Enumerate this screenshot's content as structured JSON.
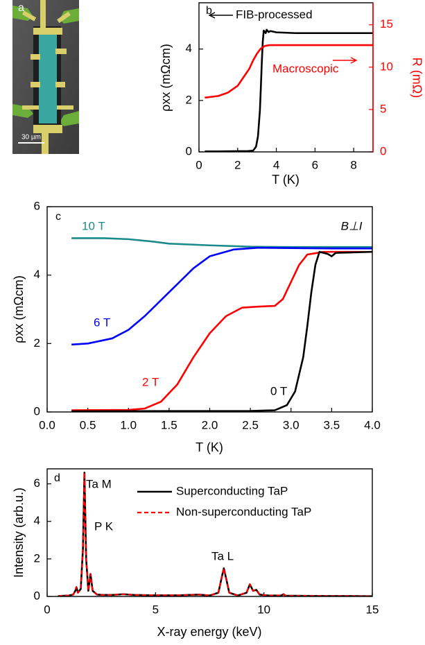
{
  "chart_data": [
    {
      "type": "image",
      "panel_label": "a",
      "scale_bar_label": "30 µm"
    },
    {
      "type": "line",
      "panel_label": "b",
      "x_label": "T (K)",
      "y_label": "ρxx (mΩcm)",
      "y2_label": "R (mΩ)",
      "y2_color": "#ff0000",
      "xlim": [
        0,
        9
      ],
      "xticks": [
        0,
        2,
        4,
        6,
        8
      ],
      "ylim": [
        0,
        5.8
      ],
      "yticks": [
        0,
        2,
        4
      ],
      "y2lim": [
        0,
        17.6
      ],
      "y2ticks": [
        0,
        5,
        10,
        15
      ],
      "series": [
        {
          "name": "FIB-processed",
          "color": "#000000",
          "x": [
            0.3,
            1.0,
            2.0,
            2.5,
            2.8,
            2.95,
            3.05,
            3.15,
            3.2,
            3.25,
            3.3,
            3.35,
            3.45,
            3.5,
            3.6,
            3.7,
            4.0,
            5.0,
            6.0,
            7.0,
            8.0,
            9.0
          ],
          "values": [
            0.02,
            0.02,
            0.03,
            0.03,
            0.05,
            0.2,
            0.6,
            1.6,
            2.5,
            3.5,
            4.3,
            4.72,
            4.62,
            4.75,
            4.66,
            4.7,
            4.65,
            4.62,
            4.62,
            4.62,
            4.62,
            4.62
          ]
        },
        {
          "name": "Macroscopic",
          "color": "#ff0000",
          "axis": "y2",
          "x": [
            0.3,
            1.0,
            1.5,
            2.0,
            2.3,
            2.6,
            2.8,
            3.0,
            3.2,
            3.4,
            3.65,
            4.0,
            5.0,
            6.0,
            7.0,
            8.0,
            9.0
          ],
          "values": [
            6.4,
            6.6,
            7.0,
            7.8,
            8.8,
            9.8,
            10.8,
            11.6,
            12.2,
            12.5,
            12.6,
            12.6,
            12.6,
            12.6,
            12.6,
            12.6,
            12.6
          ]
        }
      ]
    },
    {
      "type": "line",
      "panel_label": "c",
      "x_label": "T (K)",
      "y_label": "ρxx (mΩcm)",
      "annotation": "B⊥I",
      "xlim": [
        0,
        4
      ],
      "xticks": [
        {
          "value": 0,
          "label": "0.0"
        },
        {
          "value": 0.5,
          "label": "0.5"
        },
        {
          "value": 1,
          "label": "1.0"
        },
        {
          "value": 1.5,
          "label": "1.5"
        },
        {
          "value": 2,
          "label": "2.0"
        },
        {
          "value": 2.5,
          "label": "2.5"
        },
        {
          "value": 3,
          "label": "3.0"
        },
        {
          "value": 3.5,
          "label": "3.5"
        },
        {
          "value": 4,
          "label": "4.0"
        }
      ],
      "ylim": [
        0,
        6
      ],
      "yticks": [
        0,
        2,
        4,
        6
      ],
      "series": [
        {
          "name": "10 T",
          "color": "#1a8a8a",
          "x": [
            0.3,
            0.7,
            1.0,
            1.3,
            1.5,
            2.0,
            2.5,
            3.0,
            3.5,
            4.0
          ],
          "values": [
            5.08,
            5.08,
            5.05,
            4.98,
            4.92,
            4.87,
            4.83,
            4.82,
            4.82,
            4.82
          ]
        },
        {
          "name": "6 T",
          "color": "#0000ff",
          "x": [
            0.3,
            0.5,
            0.8,
            1.0,
            1.2,
            1.5,
            1.8,
            2.0,
            2.3,
            2.6,
            3.0,
            3.5,
            4.0
          ],
          "values": [
            1.97,
            2.0,
            2.15,
            2.4,
            2.8,
            3.5,
            4.2,
            4.55,
            4.75,
            4.8,
            4.79,
            4.78,
            4.78
          ]
        },
        {
          "name": "2 T",
          "color": "#ff0000",
          "x": [
            0.3,
            1.0,
            1.2,
            1.4,
            1.6,
            1.8,
            2.0,
            2.2,
            2.4,
            2.6,
            2.8,
            2.9,
            3.0,
            3.1,
            3.2,
            3.4,
            4.0
          ],
          "values": [
            0.05,
            0.06,
            0.1,
            0.3,
            0.8,
            1.6,
            2.3,
            2.8,
            3.05,
            3.08,
            3.1,
            3.3,
            3.8,
            4.3,
            4.6,
            4.68,
            4.68
          ]
        },
        {
          "name": "0 T",
          "color": "#000000",
          "x": [
            0.3,
            2.5,
            2.8,
            2.95,
            3.05,
            3.15,
            3.2,
            3.25,
            3.3,
            3.35,
            3.45,
            3.5,
            3.55,
            4.0
          ],
          "values": [
            0.02,
            0.03,
            0.05,
            0.2,
            0.6,
            1.6,
            2.5,
            3.5,
            4.3,
            4.68,
            4.62,
            4.55,
            4.65,
            4.68
          ]
        }
      ]
    },
    {
      "type": "line",
      "panel_label": "d",
      "x_label": "X-ray energy (keV)",
      "y_label": "Intensity (arb.u.)",
      "annotations": [
        "Ta M",
        "P K",
        "Ta L"
      ],
      "xlim": [
        0,
        15
      ],
      "xticks": [
        0,
        5,
        10,
        15
      ],
      "ylim": [
        0,
        6.8
      ],
      "yticks": [
        0,
        2,
        4,
        6
      ],
      "x": [
        0.5,
        1.0,
        1.2,
        1.3,
        1.35,
        1.42,
        1.55,
        1.65,
        1.72,
        1.8,
        1.9,
        2.0,
        2.1,
        2.3,
        2.6,
        3.0,
        3.5,
        4.0,
        5.0,
        6.0,
        7.0,
        7.5,
        7.9,
        8.05,
        8.15,
        8.25,
        8.4,
        8.8,
        9.2,
        9.35,
        9.5,
        9.65,
        9.8,
        10.2,
        10.8,
        10.9,
        11.0,
        12,
        13,
        14,
        15
      ],
      "series": [
        {
          "name": "Superconducting TaP",
          "color": "#000000",
          "dashed": false,
          "values": [
            0.02,
            0.05,
            0.1,
            0.3,
            0.5,
            0.2,
            0.4,
            2.5,
            6.6,
            2.0,
            0.3,
            1.2,
            0.3,
            0.1,
            0.08,
            0.08,
            0.12,
            0.08,
            0.06,
            0.06,
            0.1,
            0.05,
            0.2,
            1.0,
            1.5,
            1.0,
            0.2,
            0.05,
            0.2,
            0.65,
            0.3,
            0.35,
            0.1,
            0.05,
            0.05,
            0.12,
            0.04,
            0.03,
            0.02,
            0.02,
            0.01
          ]
        },
        {
          "name": "Non-superconducting TaP",
          "color": "#ff0000",
          "dashed": true,
          "values": [
            0.02,
            0.05,
            0.1,
            0.3,
            0.5,
            0.2,
            0.4,
            2.5,
            6.6,
            2.0,
            0.3,
            1.2,
            0.3,
            0.1,
            0.08,
            0.08,
            0.12,
            0.08,
            0.06,
            0.06,
            0.1,
            0.05,
            0.2,
            1.0,
            1.5,
            1.0,
            0.2,
            0.05,
            0.2,
            0.65,
            0.3,
            0.35,
            0.1,
            0.05,
            0.05,
            0.12,
            0.04,
            0.03,
            0.02,
            0.02,
            0.01
          ]
        }
      ]
    }
  ]
}
